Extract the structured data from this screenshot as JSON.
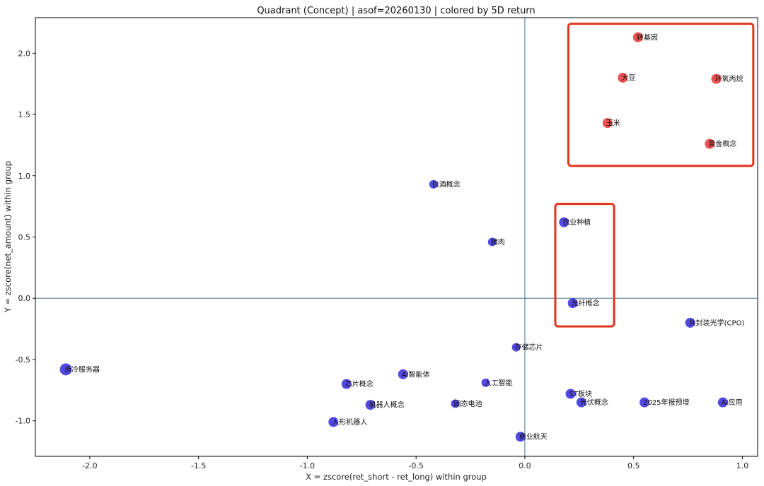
{
  "chart_data": {
    "type": "scatter",
    "title": "Quadrant (Concept) | asof=20260130 | colored by 5D return",
    "xlabel": "X = zscore(ret_short - ret_long) within group",
    "ylabel": "Y = zscore(net_amount) within group",
    "xlim": [
      -2.25,
      1.07
    ],
    "ylim": [
      -1.29,
      2.29
    ],
    "xticks": [
      -2.0,
      -1.5,
      -1.0,
      -0.5,
      0.0,
      0.5,
      1.0
    ],
    "yticks": [
      -1.0,
      -0.5,
      0.0,
      0.5,
      1.0,
      1.5,
      2.0
    ],
    "xtick_labels": [
      "-2.0",
      "-1.5",
      "-1.0",
      "-0.5",
      "0.0",
      "0.5",
      "1.0"
    ],
    "ytick_labels": [
      "-1.0",
      "-0.5",
      "0.0",
      "0.5",
      "1.0",
      "1.5",
      "2.0"
    ],
    "reference_lines": {
      "x": 0.0,
      "y": 0.0
    },
    "colors": {
      "positive": "#e8393a",
      "negative": "#3b30e0",
      "reference": "#2a5c80",
      "highlight_box": "#e0341e"
    },
    "points": [
      {
        "label": "转基因",
        "x": 0.52,
        "y": 2.13,
        "group": "positive",
        "size": "m"
      },
      {
        "label": "大豆",
        "x": 0.45,
        "y": 1.8,
        "group": "positive",
        "size": "m"
      },
      {
        "label": "环氧丙烷",
        "x": 0.88,
        "y": 1.79,
        "group": "positive",
        "size": "m"
      },
      {
        "label": "玉米",
        "x": 0.38,
        "y": 1.43,
        "group": "positive",
        "size": "m"
      },
      {
        "label": "黄金概念",
        "x": 0.85,
        "y": 1.26,
        "group": "positive",
        "size": "m"
      },
      {
        "label": "白酒概念",
        "x": -0.42,
        "y": 0.93,
        "group": "negative",
        "size": "s"
      },
      {
        "label": "农业种植",
        "x": 0.18,
        "y": 0.62,
        "group": "negative",
        "size": "m"
      },
      {
        "label": "猪肉",
        "x": -0.15,
        "y": 0.46,
        "group": "negative",
        "size": "s"
      },
      {
        "label": "光纤概念",
        "x": 0.22,
        "y": -0.04,
        "group": "negative",
        "size": "m"
      },
      {
        "label": "共封装光学(CPO)",
        "x": 0.76,
        "y": -0.2,
        "group": "negative",
        "size": "m"
      },
      {
        "label": "存储芯片",
        "x": -0.04,
        "y": -0.4,
        "group": "negative",
        "size": "s"
      },
      {
        "label": "液冷服务器",
        "x": -2.11,
        "y": -0.58,
        "group": "negative",
        "size": "l"
      },
      {
        "label": "AI智能体",
        "x": -0.56,
        "y": -0.62,
        "group": "negative",
        "size": "m"
      },
      {
        "label": "芯片概念",
        "x": -0.82,
        "y": -0.7,
        "group": "negative",
        "size": "m"
      },
      {
        "label": "人工智能",
        "x": -0.18,
        "y": -0.69,
        "group": "negative",
        "size": "s"
      },
      {
        "label": "ST板块",
        "x": 0.21,
        "y": -0.78,
        "group": "negative",
        "size": "m"
      },
      {
        "label": "机器人概念",
        "x": -0.71,
        "y": -0.87,
        "group": "negative",
        "size": "m"
      },
      {
        "label": "固态电池",
        "x": -0.32,
        "y": -0.86,
        "group": "negative",
        "size": "s"
      },
      {
        "label": "光伏概念",
        "x": 0.26,
        "y": -0.85,
        "group": "negative",
        "size": "m"
      },
      {
        "label": "2025年报预增",
        "x": 0.55,
        "y": -0.85,
        "group": "negative",
        "size": "m"
      },
      {
        "label": "AI应用",
        "x": 0.91,
        "y": -0.85,
        "group": "negative",
        "size": "m"
      },
      {
        "label": "人形机器人",
        "x": -0.88,
        "y": -1.01,
        "group": "negative",
        "size": "m"
      },
      {
        "label": "商业航天",
        "x": -0.02,
        "y": -1.13,
        "group": "negative",
        "size": "m"
      }
    ],
    "highlight_boxes": [
      {
        "x_range": [
          0.2,
          1.05
        ],
        "y_range": [
          1.08,
          2.24
        ]
      },
      {
        "x_range": [
          0.14,
          0.41
        ],
        "y_range": [
          -0.23,
          0.77
        ]
      }
    ]
  }
}
